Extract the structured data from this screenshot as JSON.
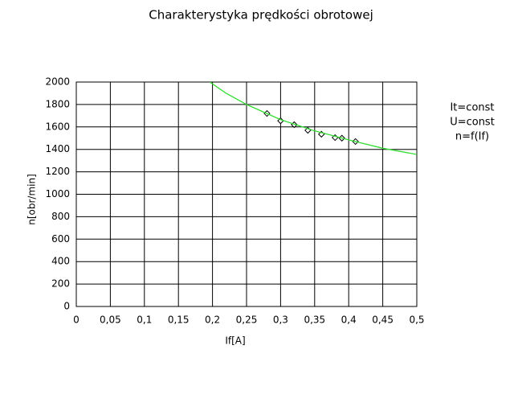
{
  "chart_data": {
    "type": "scatter",
    "title": "Charakterystyka prędkości obrotowej",
    "x_label": "If[A]",
    "y_label": "n[obr/min]",
    "annotations": [
      "It=const",
      "U=const",
      "n=f(If)"
    ],
    "xlim": [
      0,
      0.5
    ],
    "ylim": [
      0,
      2000
    ],
    "xticks": [
      0,
      {
        "value": 0.05,
        "label": "0,05"
      },
      {
        "value": 0.1,
        "label": "0,1"
      },
      {
        "value": 0.15,
        "label": "0,15"
      },
      {
        "value": 0.2,
        "label": "0,2"
      },
      {
        "value": 0.25,
        "label": "0,25"
      },
      {
        "value": 0.3,
        "label": "0,3"
      },
      {
        "value": 0.35,
        "label": "0,35"
      },
      {
        "value": 0.4,
        "label": "0,4"
      },
      {
        "value": 0.45,
        "label": "0,45"
      },
      {
        "value": 0.5,
        "label": "0,5"
      }
    ],
    "yticks": [
      0,
      200,
      400,
      600,
      800,
      1000,
      1200,
      1400,
      1600,
      1800,
      2000
    ],
    "grid": true,
    "series": [
      {
        "type": "scatter",
        "color": "#000000",
        "x": [
          0.28,
          0.3,
          0.32,
          0.34,
          0.36,
          0.38,
          0.39,
          0.41
        ],
        "values": [
          1720,
          1655,
          1620,
          1570,
          1535,
          1505,
          1500,
          1470
        ]
      },
      {
        "type": "line",
        "color": "#33dd33",
        "x": [
          0.196,
          0.22,
          0.25,
          0.3,
          0.35,
          0.4,
          0.45,
          0.5
        ],
        "values": [
          2000,
          1900,
          1800,
          1665,
          1565,
          1485,
          1410,
          1355
        ]
      }
    ]
  }
}
